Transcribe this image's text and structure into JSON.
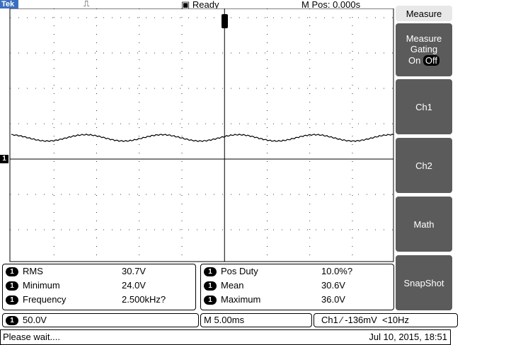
{
  "header": {
    "brand": "Tek",
    "status": "Ready",
    "position": "M Pos: 0.000s"
  },
  "screen": {
    "channel_marker": "1"
  },
  "menu": {
    "title": "Measure",
    "gating": {
      "label": "Measure Gating",
      "on": "On",
      "off": "Off"
    },
    "items": [
      "Ch1",
      "Ch2",
      "Math",
      "SnapShot"
    ]
  },
  "measurements": {
    "left": [
      {
        "channel": "1",
        "name": "RMS",
        "value": "30.7V"
      },
      {
        "channel": "1",
        "name": "Minimum",
        "value": "24.0V"
      },
      {
        "channel": "1",
        "name": "Frequency",
        "value": "2.500kHz?"
      }
    ],
    "right": [
      {
        "channel": "1",
        "name": "Pos Duty",
        "value": "10.0%?"
      },
      {
        "channel": "1",
        "name": "Mean",
        "value": "30.6V"
      },
      {
        "channel": "1",
        "name": "Maximum",
        "value": "36.0V"
      }
    ]
  },
  "bottom": {
    "channel": "1",
    "scale": "50.0V",
    "timebase": "M 5.00ms",
    "trigger_source": "Ch1",
    "trigger_level": "-136mV",
    "trigger_freq": "<10Hz"
  },
  "status": {
    "message": "Please wait....",
    "datetime": "Jul 10, 2015, 18:51"
  }
}
